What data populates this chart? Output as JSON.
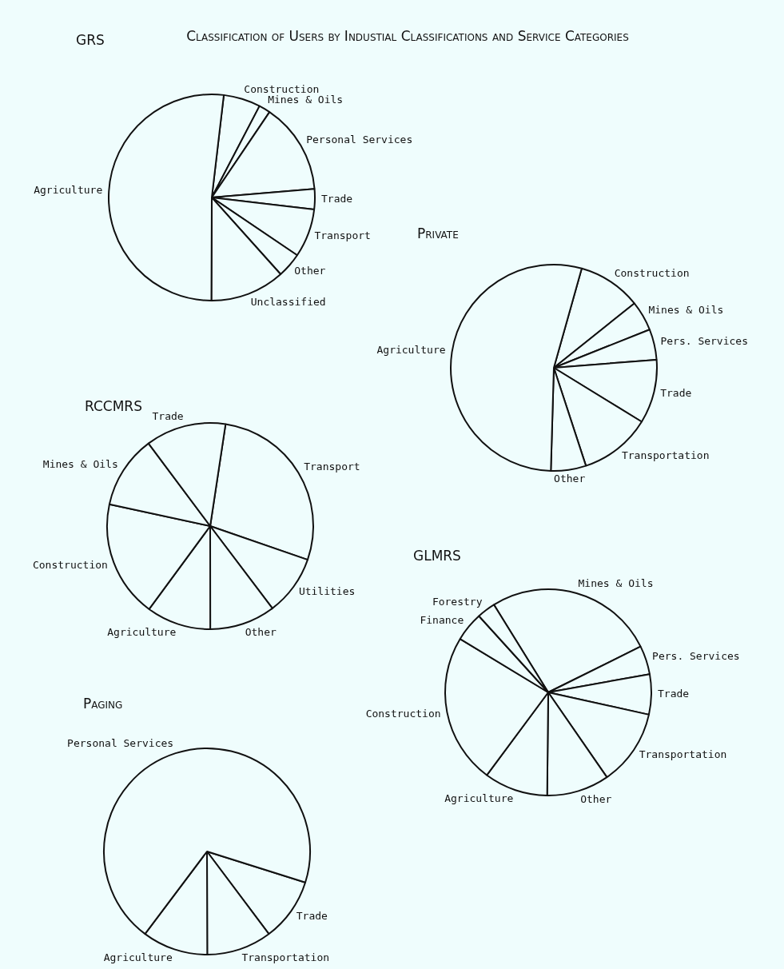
{
  "chart_data": [
    {
      "type": "other",
      "title": "Classification of Users by Industial Classifications and Service Categories"
    },
    {
      "type": "pie",
      "title": "GRS",
      "categories": [
        "Construction",
        "Mines & Oils",
        "Personal Services",
        "Trade",
        "Transport",
        "Other",
        "Unclassified",
        "Agriculture"
      ],
      "values": [
        5.8,
        1.8,
        14.2,
        3.2,
        7.6,
        3.9,
        11.7,
        51.8
      ],
      "colors": [
        "#effdfd",
        "#effdfd",
        "#effdfd",
        "#effdfd",
        "#effdfd",
        "#effdfd",
        "#effdfd",
        "#effdfd"
      ]
    },
    {
      "type": "pie",
      "title": "Private",
      "categories": [
        "Construction",
        "Mines & Oils",
        "Pers. Services",
        "Trade",
        "Transportation",
        "Other",
        "Agriculture"
      ],
      "values": [
        9.9,
        4.7,
        4.8,
        10.0,
        11.2,
        5.5,
        53.9
      ],
      "colors": [
        "#effdfd",
        "#effdfd",
        "#effdfd",
        "#effdfd",
        "#effdfd",
        "#effdfd",
        "#effdfd"
      ]
    },
    {
      "type": "pie",
      "title": "RCCMRS",
      "categories": [
        "Transport",
        "Utilities",
        "Other",
        "Agriculture",
        "Construction",
        "Mines & Oils",
        "Trade"
      ],
      "values": [
        27.9,
        9.4,
        10.3,
        10.1,
        18.3,
        11.4,
        12.6
      ],
      "colors": [
        "#effdfd",
        "#effdfd",
        "#effdfd",
        "#effdfd",
        "#effdfd",
        "#effdfd",
        "#effdfd"
      ]
    },
    {
      "type": "pie",
      "title": "GLMRS",
      "categories": [
        "Mines & Oils",
        "Pers. Services",
        "Trade",
        "Transportation",
        "Other",
        "Agriculture",
        "Construction",
        "Finance",
        "Forestry"
      ],
      "values": [
        26.5,
        4.5,
        6.3,
        11.9,
        9.8,
        10.0,
        23.5,
        4.6,
        2.9
      ],
      "colors": [
        "#effdfd",
        "#effdfd",
        "#effdfd",
        "#effdfd",
        "#effdfd",
        "#effdfd",
        "#effdfd",
        "#effdfd",
        "#effdfd"
      ]
    },
    {
      "type": "pie",
      "title": "Paging",
      "categories": [
        "Trade",
        "Transportation",
        "Agriculture",
        "Personal Services"
      ],
      "values": [
        9.9,
        10.2,
        10.3,
        69.6
      ],
      "colors": [
        "#effdfd",
        "#effdfd",
        "#effdfd",
        "#effdfd"
      ]
    }
  ]
}
